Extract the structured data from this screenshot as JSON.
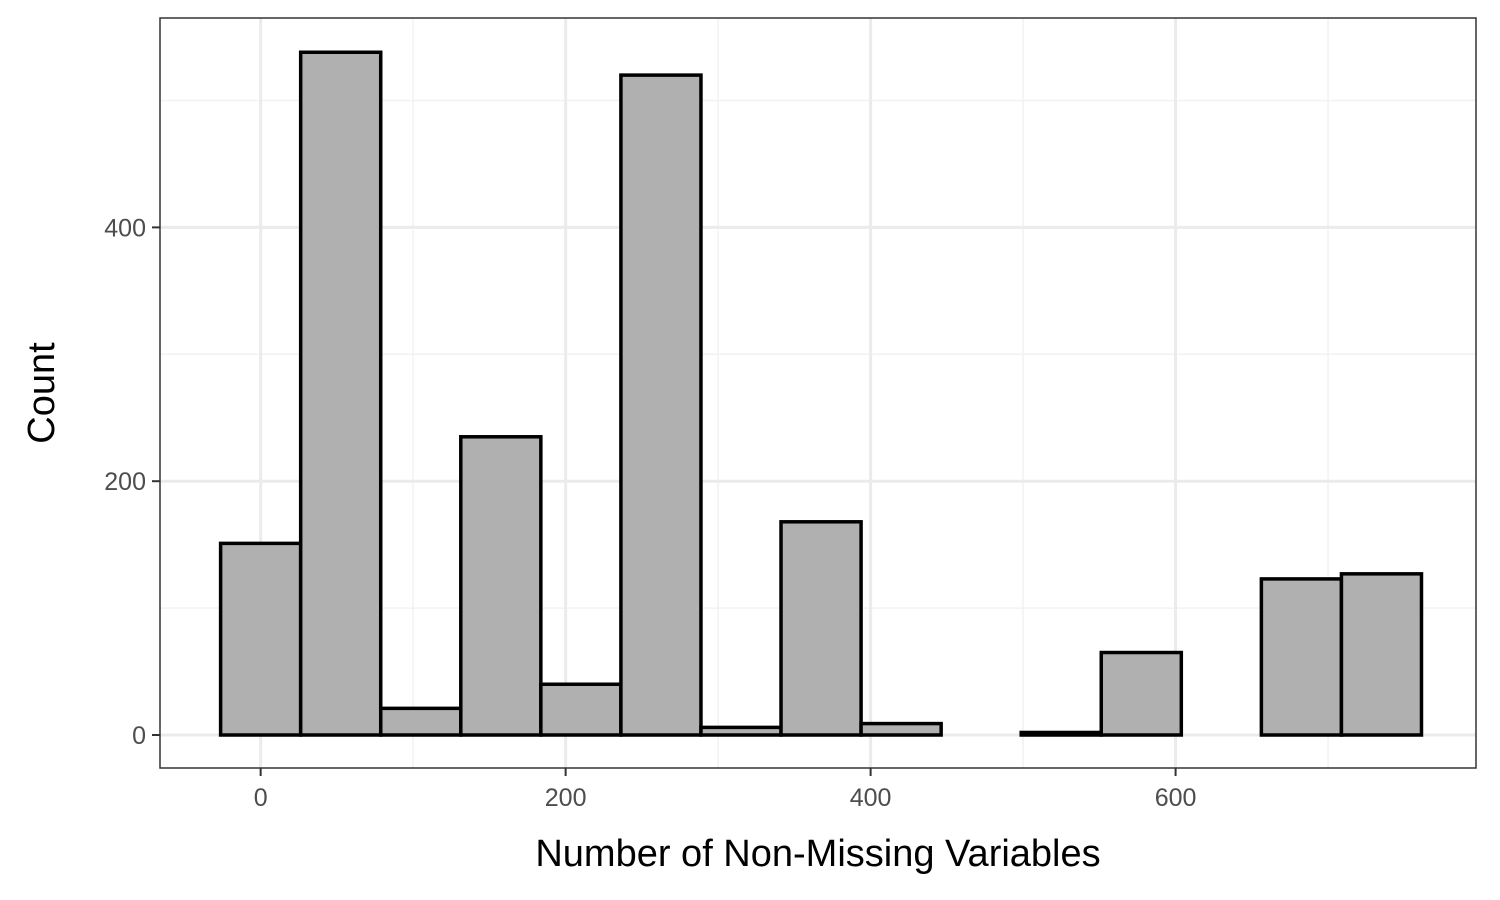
{
  "chart_data": {
    "type": "bar",
    "subtype": "histogram",
    "title": "",
    "xlabel": "Number of Non-Missing Variables",
    "ylabel": "Count",
    "xlim": [
      -66,
      797
    ],
    "ylim": [
      -26,
      565
    ],
    "x_ticks": [
      0,
      200,
      400,
      600
    ],
    "x_minor_ticks": [
      100,
      300,
      500,
      700
    ],
    "y_ticks": [
      0,
      200,
      400
    ],
    "y_minor_ticks": [
      100,
      300,
      500
    ],
    "bin_width": 52.5,
    "bins": [
      {
        "start": -26.25,
        "end": 26.25,
        "count": 151
      },
      {
        "start": 26.25,
        "end": 78.75,
        "count": 538
      },
      {
        "start": 78.75,
        "end": 131.25,
        "count": 21
      },
      {
        "start": 131.25,
        "end": 183.75,
        "count": 235
      },
      {
        "start": 183.75,
        "end": 236.25,
        "count": 40
      },
      {
        "start": 236.25,
        "end": 288.75,
        "count": 520
      },
      {
        "start": 288.75,
        "end": 341.25,
        "count": 6
      },
      {
        "start": 341.25,
        "end": 393.75,
        "count": 168
      },
      {
        "start": 393.75,
        "end": 446.25,
        "count": 9
      },
      {
        "start": 446.25,
        "end": 498.75,
        "count": 0
      },
      {
        "start": 498.75,
        "end": 551.25,
        "count": 2
      },
      {
        "start": 551.25,
        "end": 603.75,
        "count": 65
      },
      {
        "start": 603.75,
        "end": 656.25,
        "count": 0
      },
      {
        "start": 656.25,
        "end": 708.75,
        "count": 123
      },
      {
        "start": 708.75,
        "end": 761.25,
        "count": 127
      }
    ],
    "grid": true,
    "legend": "none",
    "colors": {
      "bar_fill": "#b0b0b0",
      "bar_stroke": "#000000",
      "grid_major": "#ebebeb",
      "grid_minor": "#f2f2f2",
      "panel_border": "#333333",
      "tick_label": "#4d4d4d"
    }
  }
}
